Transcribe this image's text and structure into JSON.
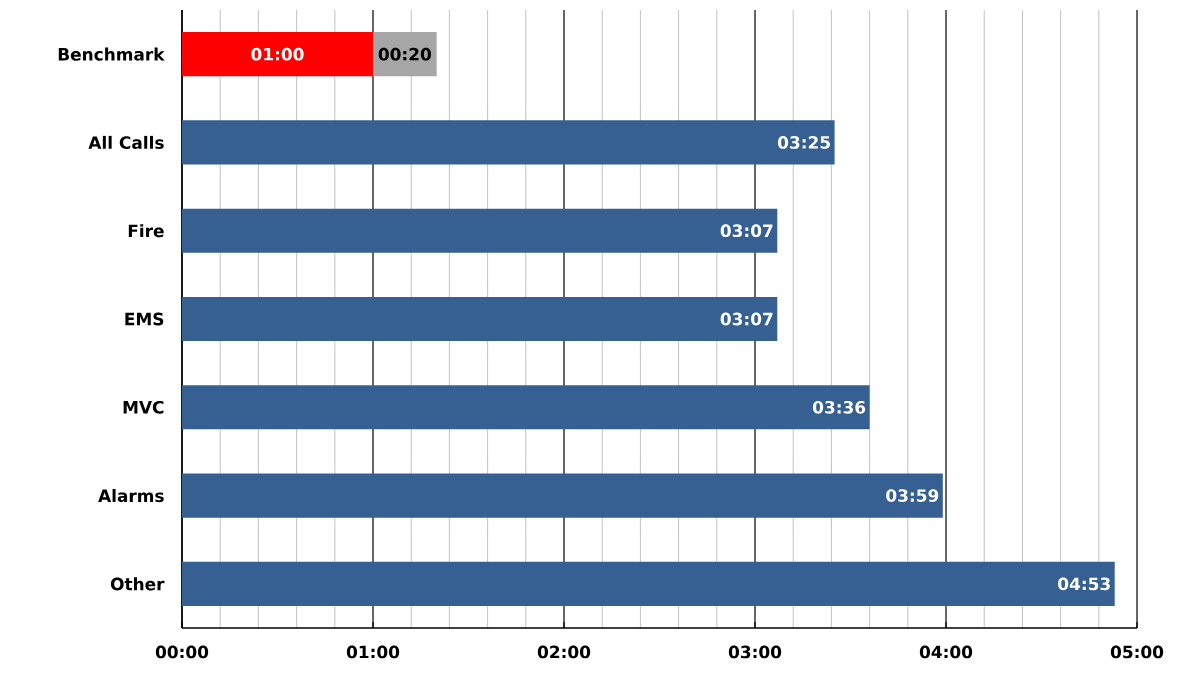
{
  "chart_data": {
    "type": "bar",
    "orientation": "horizontal",
    "stacked": true,
    "categories": [
      "Benchmark",
      "All Calls",
      "Fire",
      "EMS",
      "MVC",
      "Alarms",
      "Other"
    ],
    "series": [
      {
        "colors": [
          "#ff0000",
          "#366092",
          "#366092",
          "#366092",
          "#366092",
          "#366092",
          "#366092"
        ],
        "values": [
          1,
          3.4167,
          3.1167,
          3.1167,
          3.6,
          3.9833,
          4.8833
        ],
        "value_labels": [
          "01:00",
          "03:25",
          "03:07",
          "03:07",
          "03:36",
          "03:59",
          "04:53"
        ]
      },
      {
        "color": "#a6a6a6",
        "values": [
          0.3333,
          null,
          null,
          null,
          null,
          null,
          null
        ],
        "value_labels": [
          "00:20",
          null,
          null,
          null,
          null,
          null,
          null
        ]
      }
    ],
    "xlim": [
      0,
      5
    ],
    "xticks": [
      {
        "value": 0,
        "label": "00:00"
      },
      {
        "value": 1,
        "label": "01:00"
      },
      {
        "value": 2,
        "label": "02:00"
      },
      {
        "value": 3,
        "label": "03:00"
      },
      {
        "value": 4,
        "label": "04:00"
      },
      {
        "value": 5,
        "label": "05:00"
      }
    ],
    "grid": "x"
  }
}
